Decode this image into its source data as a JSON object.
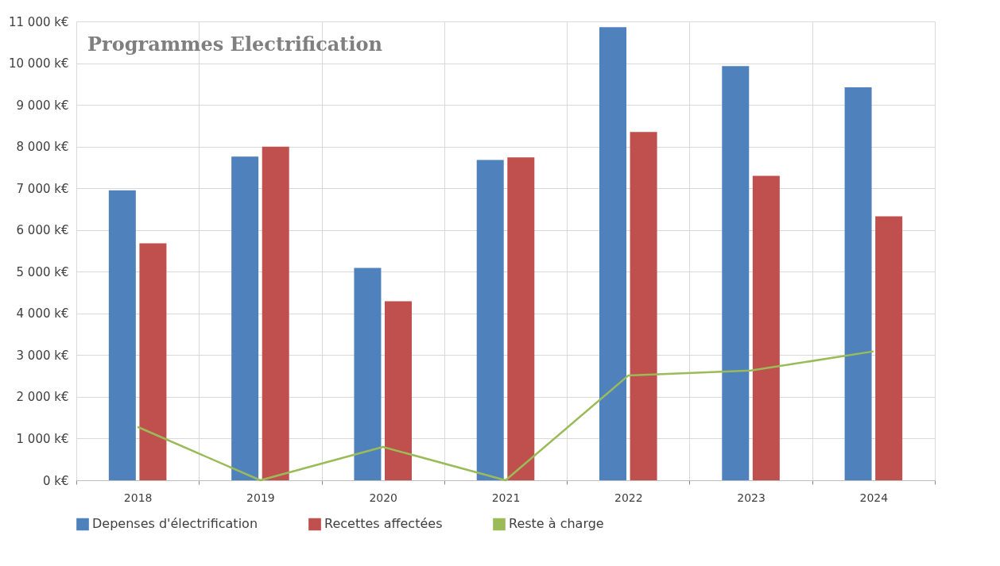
{
  "chart_data": {
    "type": "bar",
    "title": "Programmes Electrification",
    "categories": [
      "2018",
      "2019",
      "2020",
      "2021",
      "2022",
      "2023",
      "2024"
    ],
    "series": [
      {
        "name": "Depenses d'électrification",
        "color": "#4f81bd",
        "values": [
          6950,
          7760,
          5090,
          7680,
          10860,
          9930,
          9420
        ]
      },
      {
        "name": "Recettes affectées",
        "color": "#c0504d",
        "values": [
          5680,
          8000,
          4290,
          7740,
          8350,
          7300,
          6330
        ]
      },
      {
        "name": "Reste à charge",
        "color": "#9bbb59",
        "type": "line",
        "values": [
          1280,
          0,
          800,
          0,
          2510,
          2630,
          3090
        ]
      }
    ],
    "ylim": [
      0,
      11000
    ],
    "yticks": [
      {
        "value": 0,
        "label": "0 k€"
      },
      {
        "value": 1000,
        "label": "1 000 k€"
      },
      {
        "value": 2000,
        "label": "2 000 k€"
      },
      {
        "value": 3000,
        "label": "3 000 k€"
      },
      {
        "value": 4000,
        "label": "4 000 k€"
      },
      {
        "value": 5000,
        "label": "5 000 k€"
      },
      {
        "value": 6000,
        "label": "6 000 k€"
      },
      {
        "value": 7000,
        "label": "7 000 k€"
      },
      {
        "value": 8000,
        "label": "8 000 k€"
      },
      {
        "value": 9000,
        "label": "9 000 k€"
      },
      {
        "value": 10000,
        "label": "10 000 k€"
      },
      {
        "value": 11000,
        "label": "11 000 k€"
      }
    ],
    "grid": true,
    "legend": "bottom"
  }
}
